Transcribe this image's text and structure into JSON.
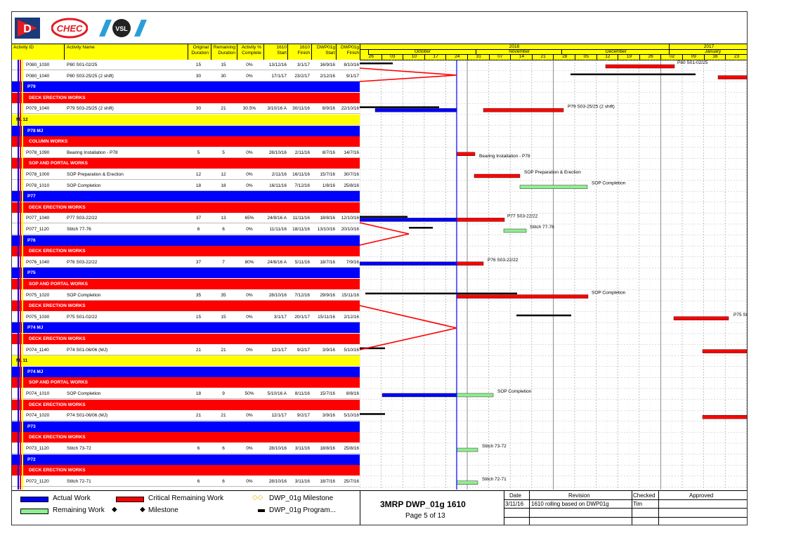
{
  "header": {
    "activity_id": "Activity ID",
    "activity_name": "Activity Name",
    "orig_dur": [
      "Original",
      "Duration"
    ],
    "rem_dur": [
      "Remaining",
      "Duration"
    ],
    "pct": [
      "Activity %",
      "Complete"
    ],
    "start": [
      "1610",
      "Start"
    ],
    "finish": [
      "1610",
      "Finish"
    ],
    "dwp_start": [
      "DWP01g",
      "Start"
    ],
    "dwp_finish": [
      "DWP01g",
      "Finish"
    ]
  },
  "timescale": {
    "years": [
      "2016",
      "2017"
    ],
    "months": [
      "October",
      "November",
      "December",
      "January"
    ],
    "days": [
      "26",
      "03",
      "10",
      "17",
      "24",
      "31",
      "07",
      "14",
      "21",
      "28",
      "05",
      "12",
      "19",
      "26",
      "02",
      "09",
      "16",
      "23"
    ]
  },
  "rows": [
    {
      "type": "act",
      "id": "P080_1030",
      "name": "P80 S01-02/25",
      "od": "15",
      "rd": "15",
      "pct": "0%",
      "st": "13/12/16",
      "fi": "3/1/17",
      "ds": "16/9/16",
      "df": "8/10/16"
    },
    {
      "type": "act",
      "id": "P080_1040",
      "name": "P80 S03-25/25 (2 shift)",
      "od": "30",
      "rd": "30",
      "pct": "0%",
      "st": "17/1/17",
      "fi": "23/2/17",
      "ds": "2/12/16",
      "df": "9/1/17"
    },
    {
      "type": "blue",
      "label": "P79"
    },
    {
      "type": "red",
      "label": "DECK ERECTION WORKS"
    },
    {
      "type": "act",
      "id": "P079_1040",
      "name": "P79 S03-25/25 (2 shift)",
      "od": "30",
      "rd": "21",
      "pct": "30.5%",
      "st": "3/10/16 A",
      "fi": "30/11/16",
      "ds": "8/9/16",
      "df": "22/10/16"
    },
    {
      "type": "yel",
      "label": "ML12"
    },
    {
      "type": "blue",
      "label": "P78 MJ"
    },
    {
      "type": "red",
      "label": "COLUMN WORKS"
    },
    {
      "type": "act",
      "id": "P078_1090",
      "name": "Bearing Installation - P78",
      "od": "5",
      "rd": "5",
      "pct": "0%",
      "st": "28/10/16",
      "fi": "2/11/16",
      "ds": "8/7/16",
      "df": "14/7/16"
    },
    {
      "type": "red",
      "label": "SOP AND PORTAL WORKS"
    },
    {
      "type": "act",
      "id": "P078_1000",
      "name": "SOP Preparation & Erection",
      "od": "12",
      "rd": "12",
      "pct": "0%",
      "st": "2/11/16",
      "fi": "16/11/16",
      "ds": "15/7/16",
      "df": "30/7/16"
    },
    {
      "type": "act",
      "id": "P078_1010",
      "name": "SOP Completion",
      "od": "18",
      "rd": "18",
      "pct": "0%",
      "st": "16/11/16",
      "fi": "7/12/16",
      "ds": "1/8/16",
      "df": "25/8/16"
    },
    {
      "type": "blue",
      "label": "P77"
    },
    {
      "type": "red",
      "label": "DECK ERECTION WORKS"
    },
    {
      "type": "act",
      "id": "P077_1040",
      "name": "P77 S03-22/22",
      "od": "37",
      "rd": "13",
      "pct": "65%",
      "st": "24/9/16 A",
      "fi": "11/11/16",
      "ds": "18/8/16",
      "df": "12/10/16"
    },
    {
      "type": "act",
      "id": "P077_1120",
      "name": "Stitch 77-76",
      "od": "6",
      "rd": "6",
      "pct": "0%",
      "st": "11/11/16",
      "fi": "18/11/16",
      "ds": "13/10/16",
      "df": "20/10/16"
    },
    {
      "type": "blue",
      "label": "P76"
    },
    {
      "type": "red",
      "label": "DECK ERECTION WORKS"
    },
    {
      "type": "act",
      "id": "P076_1040",
      "name": "P76 S03-22/22",
      "od": "37",
      "rd": "7",
      "pct": "80%",
      "st": "24/6/16 A",
      "fi": "5/11/16",
      "ds": "18/7/16",
      "df": "7/9/16"
    },
    {
      "type": "blue",
      "label": "P75"
    },
    {
      "type": "red",
      "label": "SOP AND PORTAL WORKS"
    },
    {
      "type": "act",
      "id": "P075_1020",
      "name": "SOP Completion",
      "od": "35",
      "rd": "35",
      "pct": "0%",
      "st": "28/10/16",
      "fi": "7/12/16",
      "ds": "29/9/16",
      "df": "15/11/16"
    },
    {
      "type": "red",
      "label": "DECK ERECTION WORKS"
    },
    {
      "type": "act",
      "id": "P075_1030",
      "name": "P75 S01-02/22",
      "od": "15",
      "rd": "15",
      "pct": "0%",
      "st": "3/1/17",
      "fi": "20/1/17",
      "ds": "15/11/16",
      "df": "2/12/16"
    },
    {
      "type": "blue",
      "label": "P74 MJ"
    },
    {
      "type": "red",
      "label": "DECK ERECTION WORKS"
    },
    {
      "type": "act",
      "id": "P074_1140",
      "name": "P74 S01-06/06 (MJ)",
      "od": "21",
      "rd": "21",
      "pct": "0%",
      "st": "12/1/17",
      "fi": "9/2/17",
      "ds": "3/9/16",
      "df": "5/10/16"
    },
    {
      "type": "yel",
      "label": "ML11"
    },
    {
      "type": "blue",
      "label": "P74 MJ"
    },
    {
      "type": "red",
      "label": "SOP AND PORTAL WORKS"
    },
    {
      "type": "act",
      "id": "P074_1010",
      "name": "SOP Completion",
      "od": "18",
      "rd": "9",
      "pct": "50%",
      "st": "5/10/16 A",
      "fi": "8/11/16",
      "ds": "15/7/16",
      "df": "8/8/16"
    },
    {
      "type": "red",
      "label": "DECK ERECTION WORKS"
    },
    {
      "type": "act",
      "id": "P074_1020",
      "name": "P74 S01-06/06 (MJ)",
      "od": "21",
      "rd": "21",
      "pct": "0%",
      "st": "12/1/17",
      "fi": "9/2/17",
      "ds": "3/9/16",
      "df": "5/10/16"
    },
    {
      "type": "blue",
      "label": "P73"
    },
    {
      "type": "red",
      "label": "DECK ERECTION WORKS"
    },
    {
      "type": "act",
      "id": "P073_1120",
      "name": "Stitch 73-72",
      "od": "6",
      "rd": "6",
      "pct": "0%",
      "st": "28/10/16",
      "fi": "3/11/16",
      "ds": "18/8/16",
      "df": "25/8/16"
    },
    {
      "type": "blue",
      "label": "P72"
    },
    {
      "type": "red",
      "label": "DECK ERECTION WORKS"
    },
    {
      "type": "act",
      "id": "P072_1120",
      "name": "Stitch 72-71",
      "od": "6",
      "rd": "6",
      "pct": "0%",
      "st": "28/10/16",
      "fi": "3/11/16",
      "ds": "18/7/16",
      "df": "25/7/16"
    }
  ],
  "bar_labels": [
    {
      "row": 0,
      "text": "P80 S01-02/25"
    },
    {
      "row": 4,
      "text": "P79 S03-25/25 (2 shift)"
    },
    {
      "row": 8,
      "text": "Bearing Installation - P78"
    },
    {
      "row": 10,
      "text": "SOP Preparation & Erection"
    },
    {
      "row": 11,
      "text": "SOP Completion"
    },
    {
      "row": 14,
      "text": "P77 S03-22/22"
    },
    {
      "row": 15,
      "text": "Stitch 77-76"
    },
    {
      "row": 18,
      "text": "P76 S03-22/22"
    },
    {
      "row": 21,
      "text": "SOP Completion"
    },
    {
      "row": 23,
      "text": "P75 S0"
    },
    {
      "row": 30,
      "text": "SOP Completion"
    },
    {
      "row": 35,
      "text": "Stitch 73-72"
    },
    {
      "row": 38,
      "text": "Stitch 72-71"
    }
  ],
  "colors": {
    "actual": "#0000ff",
    "critical": "#ff0000",
    "remaining": "#90ee90",
    "dwp": "#000000",
    "header": "#ffff00"
  },
  "legend": {
    "actual": "Actual Work",
    "critical": "Critical Remaining Work",
    "dwp_milestone": "DWP_01g Milestone",
    "remaining": "Remaining Work",
    "milestone": "Milestone",
    "dwp_program": "DWP_01g Program..."
  },
  "footer": {
    "title": "3MRP DWP_01g 1610",
    "page": "Page 5 of 13",
    "col_date": "Date",
    "col_revision": "Revision",
    "col_checked": "Checked",
    "col_approved": "Approved",
    "date": "3/11/16",
    "revision": "1610 rolling based on DWP01g",
    "checked": "Tim"
  },
  "logos": [
    "D",
    "CHEC",
    "VSL"
  ]
}
